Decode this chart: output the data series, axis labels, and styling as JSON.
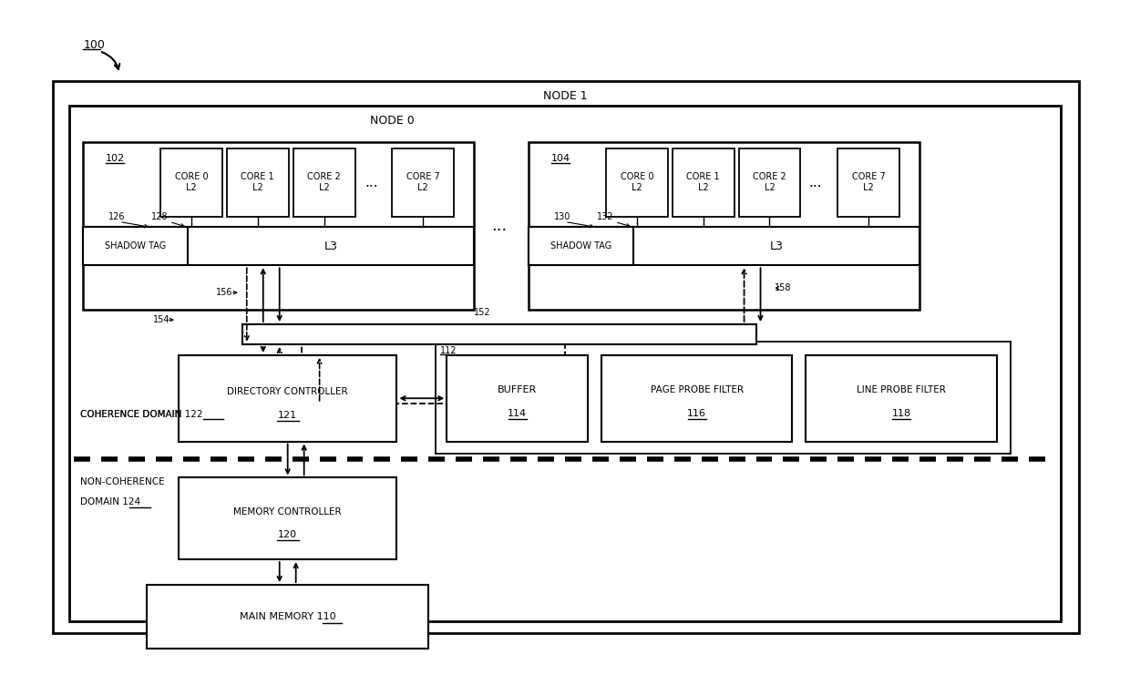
{
  "bg_color": "#ffffff",
  "fig_width": 12.4,
  "fig_height": 7.41,
  "node1_label": "NODE 1",
  "node0_label": "NODE 0",
  "chip102_label": "102",
  "chip104_label": "104",
  "shadow_tag": "SHADOW TAG",
  "l3": "L3",
  "dir_ctrl_line1": "DIRECTORY CONTROLLER",
  "dir_ctrl_line2": "121",
  "mem_ctrl_line1": "MEMORY CONTROLLER",
  "mem_ctrl_line2": "120",
  "main_mem": "MAIN MEMORY",
  "main_mem_num": "110",
  "buffer_line1": "BUFFER",
  "buffer_line2": "114",
  "page_probe_line1": "PAGE PROBE FILTER",
  "page_probe_line2": "116",
  "line_probe_line1": "LINE PROBE FILTER",
  "line_probe_line2": "118",
  "coherence": "COHERENCE DOMAIN",
  "coherence_num": "122",
  "non_coherence_line1": "NON-COHERENCE",
  "non_coherence_line2": "DOMAIN",
  "non_coherence_num": "124",
  "label_100": "100",
  "label_102": "102",
  "label_104": "104",
  "label_110": "110",
  "label_112": "112",
  "label_121": "121",
  "label_120": "120",
  "label_126": "126",
  "label_128": "128",
  "label_130": "130",
  "label_132": "132",
  "label_152": "152",
  "label_154": "154",
  "label_156": "156",
  "label_158": "158",
  "cores": [
    "CORE 0\nL2",
    "CORE 1\nL2",
    "CORE 2\nL2",
    "CORE 7\nL2"
  ]
}
